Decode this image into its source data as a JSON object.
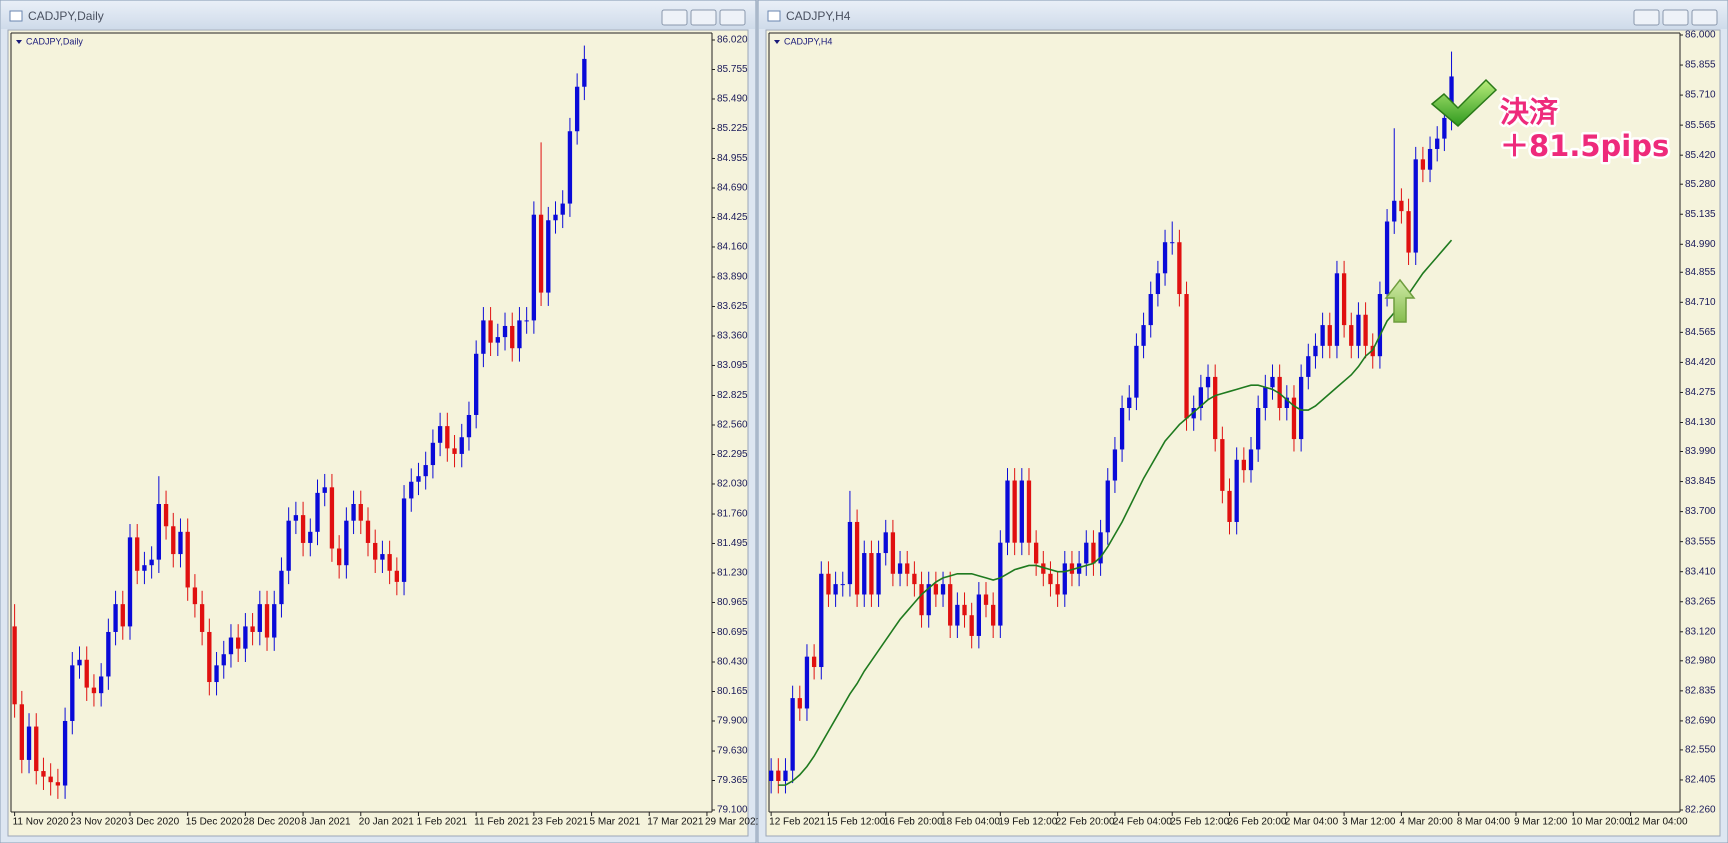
{
  "chart_data": [
    {
      "type": "candlestick",
      "window_title": "CADJPY,Daily",
      "title": "CADJPY,Daily",
      "up_color": "#0a0ad8",
      "down_color": "#e01010",
      "background": "#f5f3dc",
      "xlim": [
        -0.5,
        96.7
      ],
      "xticks": [
        {
          "value": 0,
          "label": "11 Nov 2020"
        },
        {
          "value": 8,
          "label": "23 Nov 2020"
        },
        {
          "value": 16,
          "label": "3 Dec 2020"
        },
        {
          "value": 24,
          "label": "15 Dec 2020"
        },
        {
          "value": 32,
          "label": "28 Dec 2020"
        },
        {
          "value": 40,
          "label": "8 Jan 2021"
        },
        {
          "value": 48,
          "label": "20 Jan 2021"
        },
        {
          "value": 56,
          "label": "1 Feb 2021"
        },
        {
          "value": 64,
          "label": "11 Feb 2021"
        },
        {
          "value": 72,
          "label": "23 Feb 2021"
        },
        {
          "value": 80,
          "label": "5 Mar 2021"
        },
        {
          "value": 88,
          "label": "17 Mar 2021"
        },
        {
          "value": 96,
          "label": "29 Mar 2021"
        }
      ],
      "ylim": [
        79.1,
        86.02
      ],
      "yticks": [
        {
          "value": 79.1,
          "label": "79.100"
        },
        {
          "value": 79.365,
          "label": "79.365"
        },
        {
          "value": 79.63,
          "label": "79.630"
        },
        {
          "value": 79.9,
          "label": "79.900"
        },
        {
          "value": 80.165,
          "label": "80.165"
        },
        {
          "value": 80.43,
          "label": "80.430"
        },
        {
          "value": 80.695,
          "label": "80.695"
        },
        {
          "value": 80.965,
          "label": "80.965"
        },
        {
          "value": 81.23,
          "label": "81.230"
        },
        {
          "value": 81.495,
          "label": "81.495"
        },
        {
          "value": 81.76,
          "label": "81.760"
        },
        {
          "value": 82.03,
          "label": "82.030"
        },
        {
          "value": 82.295,
          "label": "82.295"
        },
        {
          "value": 82.56,
          "label": "82.560"
        },
        {
          "value": 82.825,
          "label": "82.825"
        },
        {
          "value": 83.095,
          "label": "83.095"
        },
        {
          "value": 83.36,
          "label": "83.360"
        },
        {
          "value": 83.625,
          "label": "83.625"
        },
        {
          "value": 83.89,
          "label": "83.890"
        },
        {
          "value": 84.16,
          "label": "84.160"
        },
        {
          "value": 84.425,
          "label": "84.425"
        },
        {
          "value": 84.69,
          "label": "84.690"
        },
        {
          "value": 84.955,
          "label": "84.955"
        },
        {
          "value": 85.225,
          "label": "85.225"
        },
        {
          "value": 85.49,
          "label": "85.490"
        },
        {
          "value": 85.755,
          "label": "85.755"
        },
        {
          "value": 86.02,
          "label": "86.020"
        }
      ],
      "open": [
        80.75,
        80.05,
        79.55,
        79.85,
        79.45,
        79.4,
        79.35,
        79.32,
        79.9,
        80.4,
        80.45,
        80.2,
        80.15,
        80.3,
        80.7,
        80.95,
        80.75,
        81.55,
        81.25,
        81.3,
        81.35,
        81.85,
        81.65,
        81.4,
        81.6,
        81.1,
        80.95,
        80.7,
        80.25,
        80.4,
        80.5,
        80.65,
        80.55,
        80.75,
        80.7,
        80.95,
        80.65,
        80.95,
        81.25,
        81.7,
        81.75,
        81.5,
        81.6,
        81.95,
        82.0,
        81.45,
        81.3,
        81.7,
        81.85,
        81.7,
        81.5,
        81.35,
        81.4,
        81.25,
        81.15,
        81.9,
        82.05,
        82.1,
        82.2,
        82.4,
        82.55,
        82.35,
        82.3,
        82.45,
        82.65,
        83.2,
        83.5,
        83.3,
        83.35,
        83.45,
        83.25,
        83.5,
        83.5,
        84.45,
        83.75,
        84.4,
        84.45,
        84.55,
        85.2,
        85.6
      ],
      "high": [
        80.95,
        80.17,
        79.97,
        79.97,
        79.57,
        79.52,
        79.47,
        80.02,
        80.52,
        80.57,
        80.57,
        80.32,
        80.42,
        80.82,
        81.07,
        81.07,
        81.67,
        81.67,
        81.42,
        81.47,
        82.1,
        81.97,
        81.77,
        81.72,
        81.72,
        81.22,
        81.07,
        80.82,
        80.52,
        80.62,
        80.77,
        80.77,
        80.87,
        80.87,
        81.07,
        81.07,
        81.07,
        81.37,
        81.82,
        81.87,
        81.87,
        81.72,
        82.07,
        82.12,
        82.12,
        81.57,
        81.82,
        81.97,
        81.97,
        81.82,
        81.62,
        81.52,
        81.52,
        81.37,
        82.02,
        82.17,
        82.22,
        82.32,
        82.52,
        82.67,
        82.67,
        82.47,
        82.57,
        82.77,
        83.32,
        83.62,
        83.62,
        83.47,
        83.57,
        83.57,
        83.62,
        83.62,
        84.57,
        85.1,
        84.52,
        84.57,
        84.67,
        85.32,
        85.72,
        85.97
      ],
      "low": [
        79.93,
        79.43,
        79.43,
        79.33,
        79.28,
        79.23,
        79.2,
        79.2,
        79.78,
        80.28,
        80.08,
        80.03,
        80.03,
        80.18,
        80.58,
        80.63,
        80.63,
        81.13,
        81.13,
        81.18,
        81.23,
        81.53,
        81.28,
        81.28,
        80.98,
        80.83,
        80.58,
        80.13,
        80.13,
        80.28,
        80.38,
        80.43,
        80.43,
        80.58,
        80.58,
        80.53,
        80.53,
        80.83,
        81.13,
        81.58,
        81.38,
        81.38,
        81.48,
        81.83,
        81.33,
        81.18,
        81.18,
        81.58,
        81.58,
        81.38,
        81.23,
        81.23,
        81.13,
        81.03,
        81.03,
        81.78,
        81.93,
        81.98,
        82.08,
        82.28,
        82.23,
        82.18,
        82.18,
        82.33,
        82.53,
        83.08,
        83.18,
        83.18,
        83.23,
        83.13,
        83.13,
        83.38,
        83.38,
        83.63,
        83.63,
        84.28,
        84.33,
        84.43,
        85.08,
        85.48
      ],
      "close": [
        80.05,
        79.55,
        79.85,
        79.45,
        79.4,
        79.35,
        79.32,
        79.9,
        80.4,
        80.45,
        80.2,
        80.15,
        80.3,
        80.7,
        80.95,
        80.75,
        81.55,
        81.25,
        81.3,
        81.35,
        81.85,
        81.65,
        81.4,
        81.6,
        81.1,
        80.95,
        80.7,
        80.25,
        80.4,
        80.5,
        80.65,
        80.55,
        80.75,
        80.7,
        80.95,
        80.65,
        80.95,
        81.25,
        81.7,
        81.75,
        81.5,
        81.6,
        81.95,
        82.0,
        81.45,
        81.3,
        81.7,
        81.85,
        81.7,
        81.5,
        81.35,
        81.4,
        81.25,
        81.15,
        81.9,
        82.05,
        82.1,
        82.2,
        82.4,
        82.55,
        82.35,
        82.3,
        82.45,
        82.65,
        83.2,
        83.5,
        83.3,
        83.35,
        83.45,
        83.25,
        83.5,
        83.5,
        84.45,
        83.75,
        84.4,
        84.45,
        84.55,
        85.2,
        85.6,
        85.85
      ]
    },
    {
      "type": "candlestick",
      "window_title": "CADJPY,H4",
      "title": "CADJPY,H4",
      "up_color": "#0a0ad8",
      "down_color": "#e01010",
      "background": "#f5f3dc",
      "xlim": [
        -0.3,
        126.9
      ],
      "xticks": [
        {
          "value": 0,
          "label": "12 Feb 2021"
        },
        {
          "value": 8,
          "label": "15 Feb 12:00"
        },
        {
          "value": 16,
          "label": "16 Feb 20:00"
        },
        {
          "value": 24,
          "label": "18 Feb 04:00"
        },
        {
          "value": 32,
          "label": "19 Feb 12:00"
        },
        {
          "value": 40,
          "label": "22 Feb 20:00"
        },
        {
          "value": 48,
          "label": "24 Feb 04:00"
        },
        {
          "value": 56,
          "label": "25 Feb 12:00"
        },
        {
          "value": 64,
          "label": "26 Feb 20:00"
        },
        {
          "value": 72,
          "label": "2 Mar 04:00"
        },
        {
          "value": 80,
          "label": "3 Mar 12:00"
        },
        {
          "value": 88,
          "label": "4 Mar 20:00"
        },
        {
          "value": 96,
          "label": "8 Mar 04:00"
        },
        {
          "value": 104,
          "label": "9 Mar 12:00"
        },
        {
          "value": 112,
          "label": "10 Mar 20:00"
        },
        {
          "value": 120,
          "label": "12 Mar 04:00"
        }
      ],
      "ylim": [
        82.26,
        86.0
      ],
      "yticks": [
        {
          "value": 82.26,
          "label": "82.260"
        },
        {
          "value": 82.405,
          "label": "82.405"
        },
        {
          "value": 82.55,
          "label": "82.550"
        },
        {
          "value": 82.69,
          "label": "82.690"
        },
        {
          "value": 82.835,
          "label": "82.835"
        },
        {
          "value": 82.98,
          "label": "82.980"
        },
        {
          "value": 83.12,
          "label": "83.120"
        },
        {
          "value": 83.265,
          "label": "83.265"
        },
        {
          "value": 83.41,
          "label": "83.410"
        },
        {
          "value": 83.555,
          "label": "83.555"
        },
        {
          "value": 83.7,
          "label": "83.700"
        },
        {
          "value": 83.845,
          "label": "83.845"
        },
        {
          "value": 83.99,
          "label": "83.990"
        },
        {
          "value": 84.13,
          "label": "84.130"
        },
        {
          "value": 84.275,
          "label": "84.275"
        },
        {
          "value": 84.42,
          "label": "84.420"
        },
        {
          "value": 84.565,
          "label": "84.565"
        },
        {
          "value": 84.71,
          "label": "84.710"
        },
        {
          "value": 84.855,
          "label": "84.855"
        },
        {
          "value": 84.99,
          "label": "84.990"
        },
        {
          "value": 85.135,
          "label": "85.135"
        },
        {
          "value": 85.28,
          "label": "85.280"
        },
        {
          "value": 85.42,
          "label": "85.420"
        },
        {
          "value": 85.565,
          "label": "85.565"
        },
        {
          "value": 85.71,
          "label": "85.710"
        },
        {
          "value": 85.855,
          "label": "85.855"
        },
        {
          "value": 86.0,
          "label": "86.000"
        }
      ],
      "open": [
        82.4,
        82.45,
        82.4,
        82.45,
        82.8,
        82.75,
        83.0,
        82.95,
        83.4,
        83.3,
        83.35,
        83.35,
        83.65,
        83.3,
        83.5,
        83.3,
        83.5,
        83.6,
        83.4,
        83.45,
        83.4,
        83.35,
        83.2,
        83.35,
        83.3,
        83.35,
        83.15,
        83.25,
        83.2,
        83.1,
        83.3,
        83.25,
        83.15,
        83.55,
        83.85,
        83.55,
        83.85,
        83.55,
        83.45,
        83.4,
        83.35,
        83.3,
        83.45,
        83.4,
        83.45,
        83.55,
        83.45,
        83.6,
        83.85,
        84.0,
        84.2,
        84.25,
        84.5,
        84.6,
        84.75,
        84.85,
        85.0,
        85.0,
        84.75,
        84.15,
        84.2,
        84.3,
        84.35,
        84.05,
        83.8,
        83.65,
        83.95,
        83.9,
        84.0,
        84.2,
        84.3,
        84.35,
        84.2,
        84.25,
        84.05,
        84.35,
        84.45,
        84.5,
        84.6,
        84.5,
        84.85,
        84.6,
        84.5,
        84.65,
        84.5,
        84.45,
        84.75,
        85.1,
        85.2,
        85.15,
        84.95,
        85.4,
        85.35,
        85.45,
        85.5,
        85.6
      ],
      "high": [
        82.51,
        82.51,
        82.51,
        82.86,
        82.86,
        83.06,
        83.06,
        83.46,
        83.46,
        83.41,
        83.41,
        83.8,
        83.71,
        83.56,
        83.56,
        83.56,
        83.66,
        83.66,
        83.51,
        83.51,
        83.46,
        83.41,
        83.41,
        83.41,
        83.41,
        83.41,
        83.31,
        83.31,
        83.26,
        83.36,
        83.36,
        83.31,
        83.61,
        83.91,
        83.91,
        83.91,
        83.91,
        83.61,
        83.51,
        83.46,
        83.41,
        83.51,
        83.51,
        83.51,
        83.61,
        83.61,
        83.66,
        83.91,
        84.06,
        84.26,
        84.31,
        84.56,
        84.66,
        84.81,
        84.91,
        85.06,
        85.1,
        85.06,
        84.81,
        84.26,
        84.36,
        84.41,
        84.41,
        84.11,
        83.86,
        84.01,
        84.01,
        84.06,
        84.26,
        84.36,
        84.41,
        84.41,
        84.31,
        84.31,
        84.41,
        84.51,
        84.56,
        84.66,
        84.66,
        84.91,
        84.91,
        84.66,
        84.71,
        84.71,
        84.56,
        84.81,
        85.16,
        85.55,
        85.26,
        85.21,
        85.46,
        85.46,
        85.51,
        85.56,
        85.66,
        85.92
      ],
      "low": [
        82.34,
        82.34,
        82.34,
        82.39,
        82.69,
        82.69,
        82.89,
        82.89,
        83.24,
        83.24,
        83.29,
        83.29,
        83.24,
        83.24,
        83.24,
        83.24,
        83.44,
        83.34,
        83.34,
        83.34,
        83.29,
        83.14,
        83.14,
        83.24,
        83.24,
        83.09,
        83.09,
        83.14,
        83.04,
        83.04,
        83.19,
        83.09,
        83.09,
        83.49,
        83.49,
        83.49,
        83.49,
        83.39,
        83.34,
        83.29,
        83.24,
        83.24,
        83.34,
        83.34,
        83.39,
        83.39,
        83.39,
        83.54,
        83.79,
        83.94,
        84.14,
        84.19,
        84.44,
        84.54,
        84.69,
        84.79,
        84.94,
        84.69,
        84.09,
        84.09,
        84.14,
        84.24,
        83.99,
        83.74,
        83.59,
        83.59,
        83.84,
        83.84,
        83.94,
        84.14,
        84.24,
        84.14,
        84.14,
        83.99,
        83.99,
        84.29,
        84.39,
        84.44,
        84.44,
        84.44,
        84.54,
        84.44,
        84.44,
        84.44,
        84.39,
        84.39,
        84.69,
        85.04,
        85.09,
        84.89,
        84.89,
        85.29,
        85.29,
        85.39,
        85.44,
        85.54
      ],
      "close": [
        82.45,
        82.4,
        82.45,
        82.8,
        82.75,
        83.0,
        82.95,
        83.4,
        83.3,
        83.35,
        83.35,
        83.65,
        83.3,
        83.5,
        83.3,
        83.5,
        83.6,
        83.4,
        83.45,
        83.4,
        83.35,
        83.2,
        83.35,
        83.3,
        83.35,
        83.15,
        83.25,
        83.2,
        83.1,
        83.3,
        83.25,
        83.15,
        83.55,
        83.85,
        83.55,
        83.85,
        83.55,
        83.45,
        83.4,
        83.35,
        83.3,
        83.45,
        83.4,
        83.45,
        83.55,
        83.45,
        83.6,
        83.85,
        84.0,
        84.2,
        84.25,
        84.5,
        84.6,
        84.75,
        84.85,
        85.0,
        85.0,
        84.75,
        84.15,
        84.2,
        84.3,
        84.35,
        84.05,
        83.8,
        83.65,
        83.95,
        83.9,
        84.0,
        84.2,
        84.3,
        84.35,
        84.2,
        84.25,
        84.05,
        84.35,
        84.45,
        84.5,
        84.6,
        84.5,
        84.85,
        84.6,
        84.5,
        84.65,
        84.5,
        84.45,
        84.75,
        85.1,
        85.2,
        85.15,
        84.95,
        85.4,
        85.35,
        85.45,
        85.5,
        85.6,
        85.8
      ],
      "lines": [
        {
          "color": "#1f7a1f",
          "values": [
            null,
            82.38,
            82.38,
            82.4,
            82.43,
            82.47,
            82.52,
            82.58,
            82.64,
            82.7,
            82.76,
            82.82,
            82.87,
            82.93,
            82.98,
            83.03,
            83.08,
            83.13,
            83.18,
            83.22,
            83.26,
            83.3,
            83.33,
            83.36,
            83.38,
            83.39,
            83.4,
            83.4,
            83.4,
            83.39,
            83.38,
            83.37,
            83.38,
            83.4,
            83.42,
            83.43,
            83.44,
            83.44,
            83.43,
            83.42,
            83.41,
            83.41,
            83.42,
            83.43,
            83.44,
            83.45,
            83.48,
            83.53,
            83.59,
            83.65,
            83.72,
            83.79,
            83.86,
            83.92,
            83.98,
            84.04,
            84.08,
            84.12,
            84.15,
            84.18,
            84.21,
            84.24,
            84.26,
            84.27,
            84.28,
            84.29,
            84.3,
            84.31,
            84.31,
            84.3,
            84.29,
            84.27,
            84.24,
            84.21,
            84.19,
            84.19,
            84.21,
            84.24,
            84.27,
            84.3,
            84.33,
            84.36,
            84.4,
            84.45,
            84.48,
            84.55,
            84.62,
            84.66,
            84.7,
            84.75,
            84.8,
            84.85,
            84.89,
            84.93,
            84.97,
            85.01
          ]
        }
      ],
      "annotations": [
        "決済",
        "＋81.5pips"
      ]
    }
  ]
}
